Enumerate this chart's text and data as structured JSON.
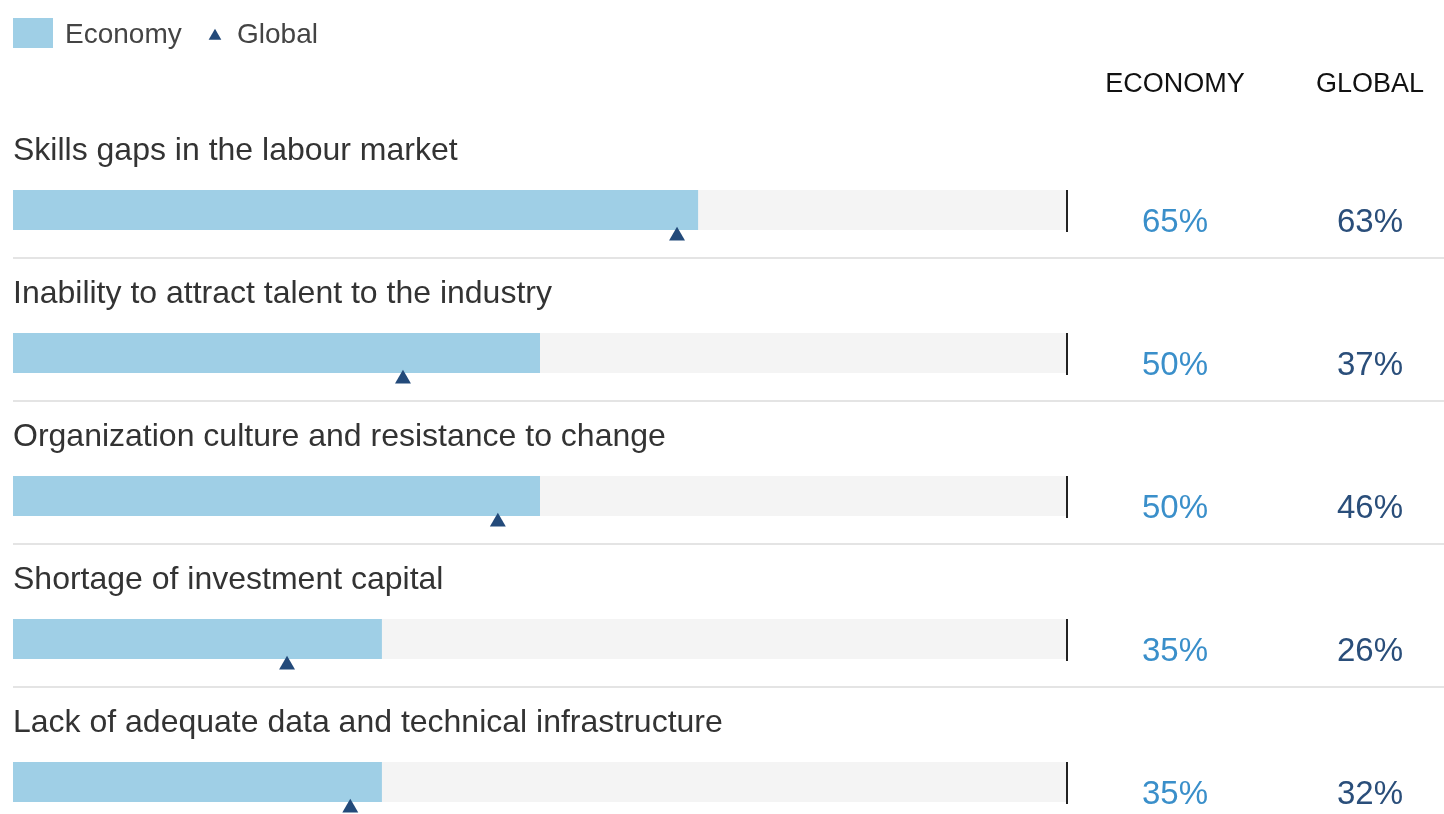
{
  "chart_data": {
    "type": "bar",
    "orientation": "horizontal",
    "categories": [
      "Skills gaps in the labour market",
      "Inability to attract talent to the industry",
      "Organization culture and resistance to change",
      "Shortage of investment capital",
      "Lack of adequate data and technical infrastructure"
    ],
    "series": [
      {
        "name": "Economy",
        "color": "#9fcfe6",
        "values": [
          65,
          50,
          50,
          35,
          35
        ],
        "value_labels": [
          "65%",
          "50%",
          "50%",
          "35%",
          "35%"
        ]
      },
      {
        "name": "Global",
        "type": "scatter",
        "color": "#234a7a",
        "values": [
          63,
          37,
          46,
          26,
          32
        ],
        "value_labels": [
          "63%",
          "37%",
          "46%",
          "26%",
          "32%"
        ]
      }
    ],
    "xlim": [
      0,
      100
    ],
    "marker": "triangle",
    "legend": "top left",
    "tick_labels": "y",
    "annotations": [
      "ECONOMY",
      "GLOBAL"
    ]
  }
}
